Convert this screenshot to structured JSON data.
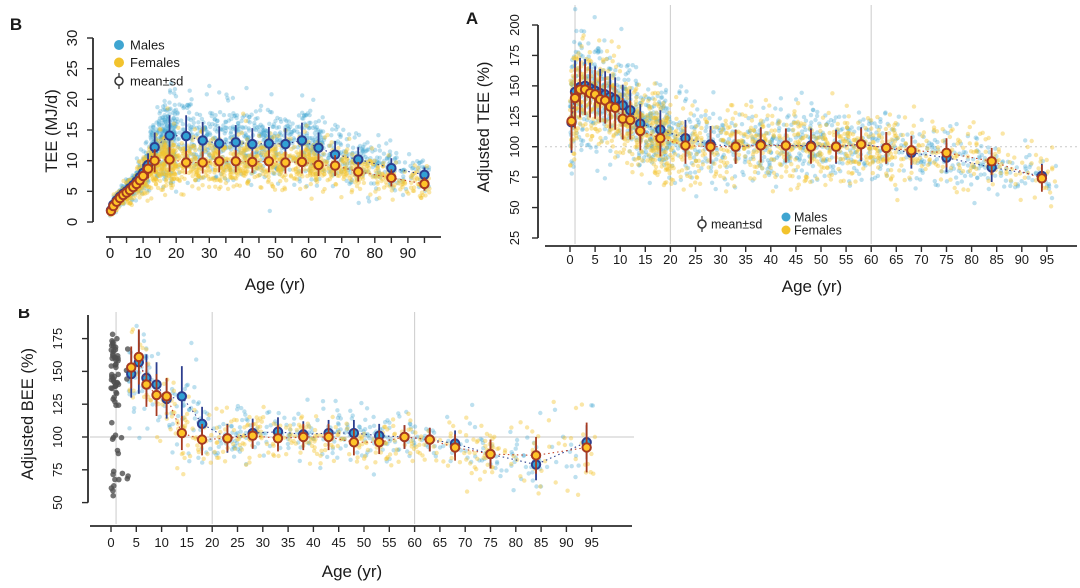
{
  "figure": {
    "background": "#ffffff"
  },
  "colors": {
    "male_scatter": "#3FA5D1",
    "male_mean_fill": "#31A1D4",
    "male_edge": "#2D3E8E",
    "female_scatter": "#F2C32D",
    "female_mean_fill": "#FFC428",
    "female_edge": "#A63A20",
    "female_connector": "#C2452A",
    "infant_gray": "#4F4F4F",
    "grid": "#d0d0d0",
    "ref_line": "#c9c9c9",
    "axis": "#2b2b2b"
  },
  "chart_data": [
    {
      "id": "tee_mjd",
      "type": "scatter",
      "panel_label": "B",
      "xlabel": "Age (yr)",
      "ylabel": "TEE (MJ/d)",
      "xlim": [
        0,
        97
      ],
      "ylim": [
        0,
        30
      ],
      "xticks": {
        "from": 0,
        "to": 95,
        "by": 5,
        "label_by": 10,
        "label_max": 90
      },
      "yticks": {
        "from": 0,
        "to": 30,
        "by": 5
      },
      "gridlines": {
        "x": [],
        "y": []
      },
      "legend": {
        "items": [
          {
            "marker": "dot",
            "series": "males",
            "label": "Males"
          },
          {
            "marker": "dot",
            "series": "females",
            "label": "Females"
          },
          {
            "marker": "meansd",
            "label": "mean±sd"
          }
        ]
      },
      "means": {
        "ages": [
          0.3,
          1,
          2,
          3,
          4,
          5,
          6,
          7,
          8,
          9,
          10,
          11.5,
          13.5,
          18,
          23,
          28,
          33,
          38,
          43,
          48,
          53,
          58,
          63,
          68,
          75,
          85,
          95
        ],
        "males": {
          "mean": [
            1.9,
            2.8,
            3.5,
            4.1,
            4.6,
            5.0,
            5.5,
            6.0,
            6.6,
            7.3,
            8.0,
            9.3,
            12.2,
            14.1,
            14.0,
            13.3,
            12.8,
            13.0,
            12.7,
            12.8,
            12.7,
            13.3,
            12.1,
            11.0,
            10.2,
            8.8,
            7.7
          ],
          "sd": [
            0.4,
            0.5,
            0.6,
            0.7,
            0.8,
            0.9,
            1.0,
            1.1,
            1.2,
            1.3,
            1.5,
            1.9,
            2.4,
            3.3,
            3.4,
            3.0,
            2.8,
            2.8,
            2.6,
            2.7,
            2.6,
            2.9,
            2.5,
            2.2,
            2.0,
            1.6,
            1.2
          ]
        },
        "females": {
          "mean": [
            1.8,
            2.6,
            3.3,
            3.9,
            4.4,
            4.8,
            5.2,
            5.7,
            6.2,
            6.8,
            7.5,
            8.7,
            10.0,
            10.2,
            9.7,
            9.7,
            9.9,
            9.9,
            9.8,
            9.9,
            9.7,
            9.8,
            9.3,
            9.2,
            8.2,
            7.2,
            6.2
          ],
          "sd": [
            0.4,
            0.5,
            0.55,
            0.6,
            0.7,
            0.8,
            0.9,
            1.0,
            1.1,
            1.2,
            1.35,
            1.6,
            1.9,
            2.0,
            1.9,
            1.8,
            1.8,
            1.8,
            1.8,
            1.8,
            1.8,
            1.9,
            1.8,
            1.7,
            1.6,
            1.4,
            1.1
          ]
        }
      },
      "scatter": {
        "males": {
          "n": 1500,
          "seed": 11
        },
        "females": {
          "n": 1500,
          "seed": 23
        },
        "clip_y": [
          0.3,
          29.6
        ]
      }
    },
    {
      "id": "adjusted_tee",
      "type": "scatter",
      "panel_label": "A",
      "xlabel": "Age (yr)",
      "ylabel": "Adjusted TEE (%)",
      "xlim": [
        -4,
        98
      ],
      "ylim": [
        25,
        215
      ],
      "xticks": {
        "from": 0,
        "to": 95,
        "by": 5,
        "label_by": 5,
        "label_max": 95
      },
      "yticks": {
        "from": 25,
        "to": 200,
        "by": 25
      },
      "gridlines": {
        "x": [
          1,
          20,
          60
        ],
        "y": [
          100
        ]
      },
      "legend": {
        "items": [
          {
            "marker": "meansd",
            "label": "mean±sd"
          },
          {
            "marker": "dot",
            "series": "males",
            "label": "Males"
          },
          {
            "marker": "dot",
            "series": "females",
            "label": "Females"
          }
        ]
      },
      "means": {
        "ages": [
          0.3,
          1,
          2,
          3,
          4,
          5,
          6,
          7,
          8,
          9,
          10.5,
          12,
          14,
          18,
          23,
          28,
          33,
          38,
          43,
          48,
          53,
          58,
          63,
          68,
          75,
          84,
          94
        ],
        "males": {
          "mean": [
            120,
            145,
            149,
            150,
            148,
            146,
            144,
            143,
            141,
            139,
            134,
            130,
            119,
            114,
            107,
            102,
            100,
            102,
            101,
            101,
            100,
            102,
            99,
            95,
            91,
            83,
            76
          ],
          "sd": [
            25,
            26,
            24,
            22,
            21,
            20,
            20,
            19,
            19,
            18,
            17,
            17,
            16,
            16,
            15,
            15,
            14,
            14,
            14,
            14,
            14,
            14,
            13,
            13,
            12,
            12,
            10
          ]
        },
        "females": {
          "mean": [
            121,
            140,
            147,
            147,
            144,
            143,
            139,
            138,
            133,
            132,
            123,
            122,
            113,
            107,
            101,
            100,
            100,
            101,
            101,
            100,
            100,
            102,
            99,
            97,
            95,
            88,
            74
          ],
          "sd": [
            24,
            25,
            23,
            21,
            20,
            20,
            19,
            19,
            18,
            18,
            17,
            16,
            16,
            15,
            15,
            14,
            14,
            14,
            14,
            14,
            13,
            13,
            13,
            12,
            12,
            11,
            11
          ]
        }
      },
      "scatter": {
        "males": {
          "n": 1250,
          "seed": 41
        },
        "females": {
          "n": 1250,
          "seed": 57
        },
        "clip_y": [
          45,
          213
        ]
      }
    },
    {
      "id": "adjusted_bee",
      "type": "scatter",
      "panel_label": "B",
      "xlabel": "Age (yr)",
      "ylabel": "Adjusted BEE (%)",
      "xlim": [
        -4,
        98
      ],
      "ylim": [
        40,
        195
      ],
      "xticks": {
        "from": 0,
        "to": 95,
        "by": 5,
        "label_by": 5,
        "label_max": 95
      },
      "yticks": {
        "from": 50,
        "to": 175,
        "by": 25
      },
      "gridlines": {
        "x": [
          1,
          20,
          60
        ],
        "y": [
          100
        ]
      },
      "legend": {
        "items": []
      },
      "means": {
        "ages": [
          4,
          5.5,
          7,
          9,
          11,
          14,
          18,
          23,
          28,
          33,
          38,
          43,
          48,
          53,
          58,
          63,
          68,
          75,
          84,
          94
        ],
        "males": {
          "mean": [
            148,
            157,
            145,
            140,
            129,
            131,
            110,
            99,
            103,
            104,
            102,
            103,
            103,
            101,
            100,
            98,
            95,
            87,
            79,
            96
          ],
          "sd": [
            18,
            24,
            18,
            17,
            15,
            23,
            13,
            11,
            11,
            11,
            10,
            10,
            10,
            9,
            9,
            9,
            10,
            11,
            12,
            13
          ]
        },
        "females": {
          "mean": [
            153,
            161,
            140,
            132,
            131,
            103,
            98,
            99,
            101,
            99,
            100,
            100,
            96,
            96,
            100,
            98,
            92,
            87,
            86,
            92
          ],
          "sd": [
            16,
            21,
            17,
            16,
            14,
            13,
            12,
            10,
            10,
            10,
            10,
            10,
            10,
            9,
            9,
            9,
            10,
            11,
            14,
            19
          ]
        }
      },
      "scatter": {
        "males": {
          "n": 400,
          "seed": 71
        },
        "females": {
          "n": 400,
          "seed": 83
        },
        "infants": {
          "n": 68,
          "seed": 5,
          "age_range": [
            0,
            1.5
          ],
          "y_range": [
            55,
            188
          ]
        },
        "clip_y": [
          54,
          189
        ]
      }
    }
  ]
}
